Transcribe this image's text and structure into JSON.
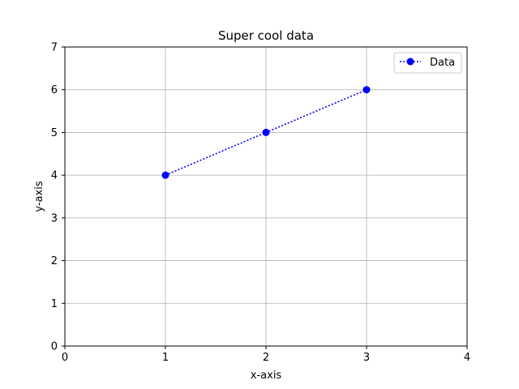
{
  "chart_data": {
    "type": "line",
    "title": "Super cool data",
    "xlabel": "x-axis",
    "ylabel": "y-axis",
    "xlim": [
      0,
      4
    ],
    "ylim": [
      0,
      7
    ],
    "xticks": [
      0,
      1,
      2,
      3,
      4
    ],
    "yticks": [
      0,
      1,
      2,
      3,
      4,
      5,
      6,
      7
    ],
    "grid": true,
    "legend_position": "top-right",
    "series": [
      {
        "name": "Data",
        "x": [
          1,
          2,
          3
        ],
        "y": [
          4,
          5,
          6
        ],
        "color": "#0000ff",
        "line_style": "dotted",
        "marker": "circle"
      }
    ]
  }
}
